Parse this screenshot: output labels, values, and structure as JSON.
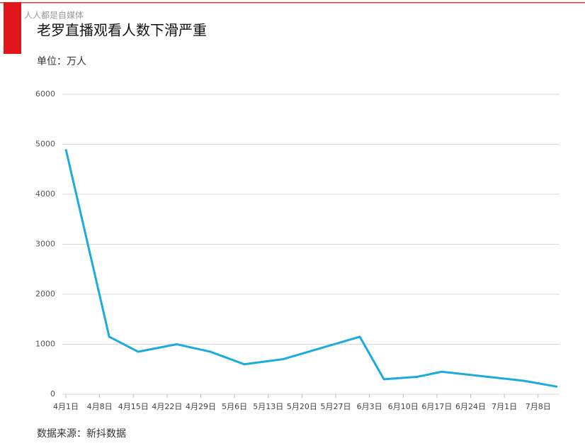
{
  "watermark": "人人都是自媒体",
  "chart_data": {
    "type": "line",
    "title": "老罗直播观看人数下滑严重",
    "subtitle": "单位：万人",
    "source": "数据来源：新抖数据",
    "x": [
      "4月1日",
      "4月10日",
      "4月16日",
      "4月24日",
      "5月1日",
      "5月8日",
      "5月16日",
      "6月1日",
      "6月6日",
      "6月13日",
      "6月18日",
      "7月5日",
      "7月12日"
    ],
    "series": [
      {
        "name": "观看人数",
        "color": "#1aabdf",
        "values": [
          4900,
          1150,
          850,
          1000,
          850,
          600,
          700,
          1150,
          300,
          350,
          450,
          270,
          150
        ]
      }
    ],
    "xlim": [
      "4月1日",
      "7月12日"
    ],
    "xticks": [
      "4月1日",
      "4月8日",
      "4月15日",
      "4月22日",
      "4月29日",
      "5月6日",
      "5月13日",
      "5月20日",
      "5月27日",
      "6月3日",
      "6月10日",
      "6月17日",
      "6月24日",
      "7月1日",
      "7月8日"
    ],
    "ylim": [
      0,
      6000
    ],
    "yticks": [
      0,
      1000,
      2000,
      3000,
      4000,
      5000,
      6000
    ],
    "grid": true
  }
}
